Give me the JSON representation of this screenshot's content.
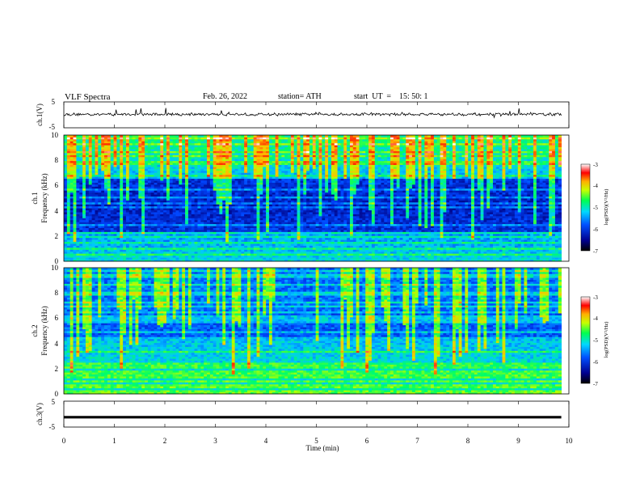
{
  "header": {
    "title": "VLF Spectra",
    "date": "Feb. 26, 2022",
    "station": "station= ATH",
    "start_label": "start  UT  =",
    "start_time": "15: 50: 1"
  },
  "chart_data": [
    {
      "type": "line",
      "name": "ch1-voltage",
      "ylabel": "ch.1(V)",
      "ylim": [
        -5,
        5
      ],
      "yticks": [
        "5",
        "-5"
      ],
      "xlim": [
        0,
        10
      ],
      "baseline": 0.2
    },
    {
      "type": "heatmap",
      "name": "ch1-spectrogram",
      "ylabel": "ch.1\nFrequency (kHz)",
      "ylabel_channel": "ch.1",
      "ylabel_quantity": "Frequency (kHz)",
      "ylim": [
        0,
        10
      ],
      "yticks": [
        "0",
        "2",
        "4",
        "6",
        "8",
        "10"
      ],
      "xlim": [
        0,
        9.85
      ],
      "colorbar": {
        "label": "log(PSD)(V²/Hz)",
        "ticks": [
          "-3",
          "-4",
          "-5",
          "-6",
          "-7"
        ],
        "range": [
          -7,
          -3
        ]
      }
    },
    {
      "type": "heatmap",
      "name": "ch2-spectrogram",
      "ylabel": "ch.2\nFrequency (kHz)",
      "ylabel_channel": "ch.2",
      "ylabel_quantity": "Frequency (kHz)",
      "ylim": [
        0,
        10
      ],
      "yticks": [
        "0",
        "2",
        "4",
        "6",
        "8",
        "10"
      ],
      "xlim": [
        0,
        9.85
      ],
      "colorbar": {
        "label": "log(PSD)(V²/Hz)",
        "ticks": [
          "-3",
          "-4",
          "-5",
          "-6",
          "-7"
        ],
        "range": [
          -7,
          -3
        ]
      }
    },
    {
      "type": "line",
      "name": "ch3-voltage",
      "ylabel": "ch.3(V)",
      "ylim": [
        -5,
        5
      ],
      "yticks": [
        "5",
        "-5"
      ],
      "xlim": [
        0,
        10
      ],
      "baseline": -1.2,
      "xlabel": "Time (min)",
      "xticks": [
        "0",
        "1",
        "2",
        "3",
        "4",
        "5",
        "6",
        "7",
        "8",
        "9",
        "10"
      ]
    }
  ],
  "colors": {
    "colormap": [
      "#000050",
      "#0000c8",
      "#0050ff",
      "#00c8ff",
      "#00ff64",
      "#c8ff00",
      "#ffc800",
      "#ff3200",
      "#ffffff"
    ],
    "line": "#000000"
  }
}
